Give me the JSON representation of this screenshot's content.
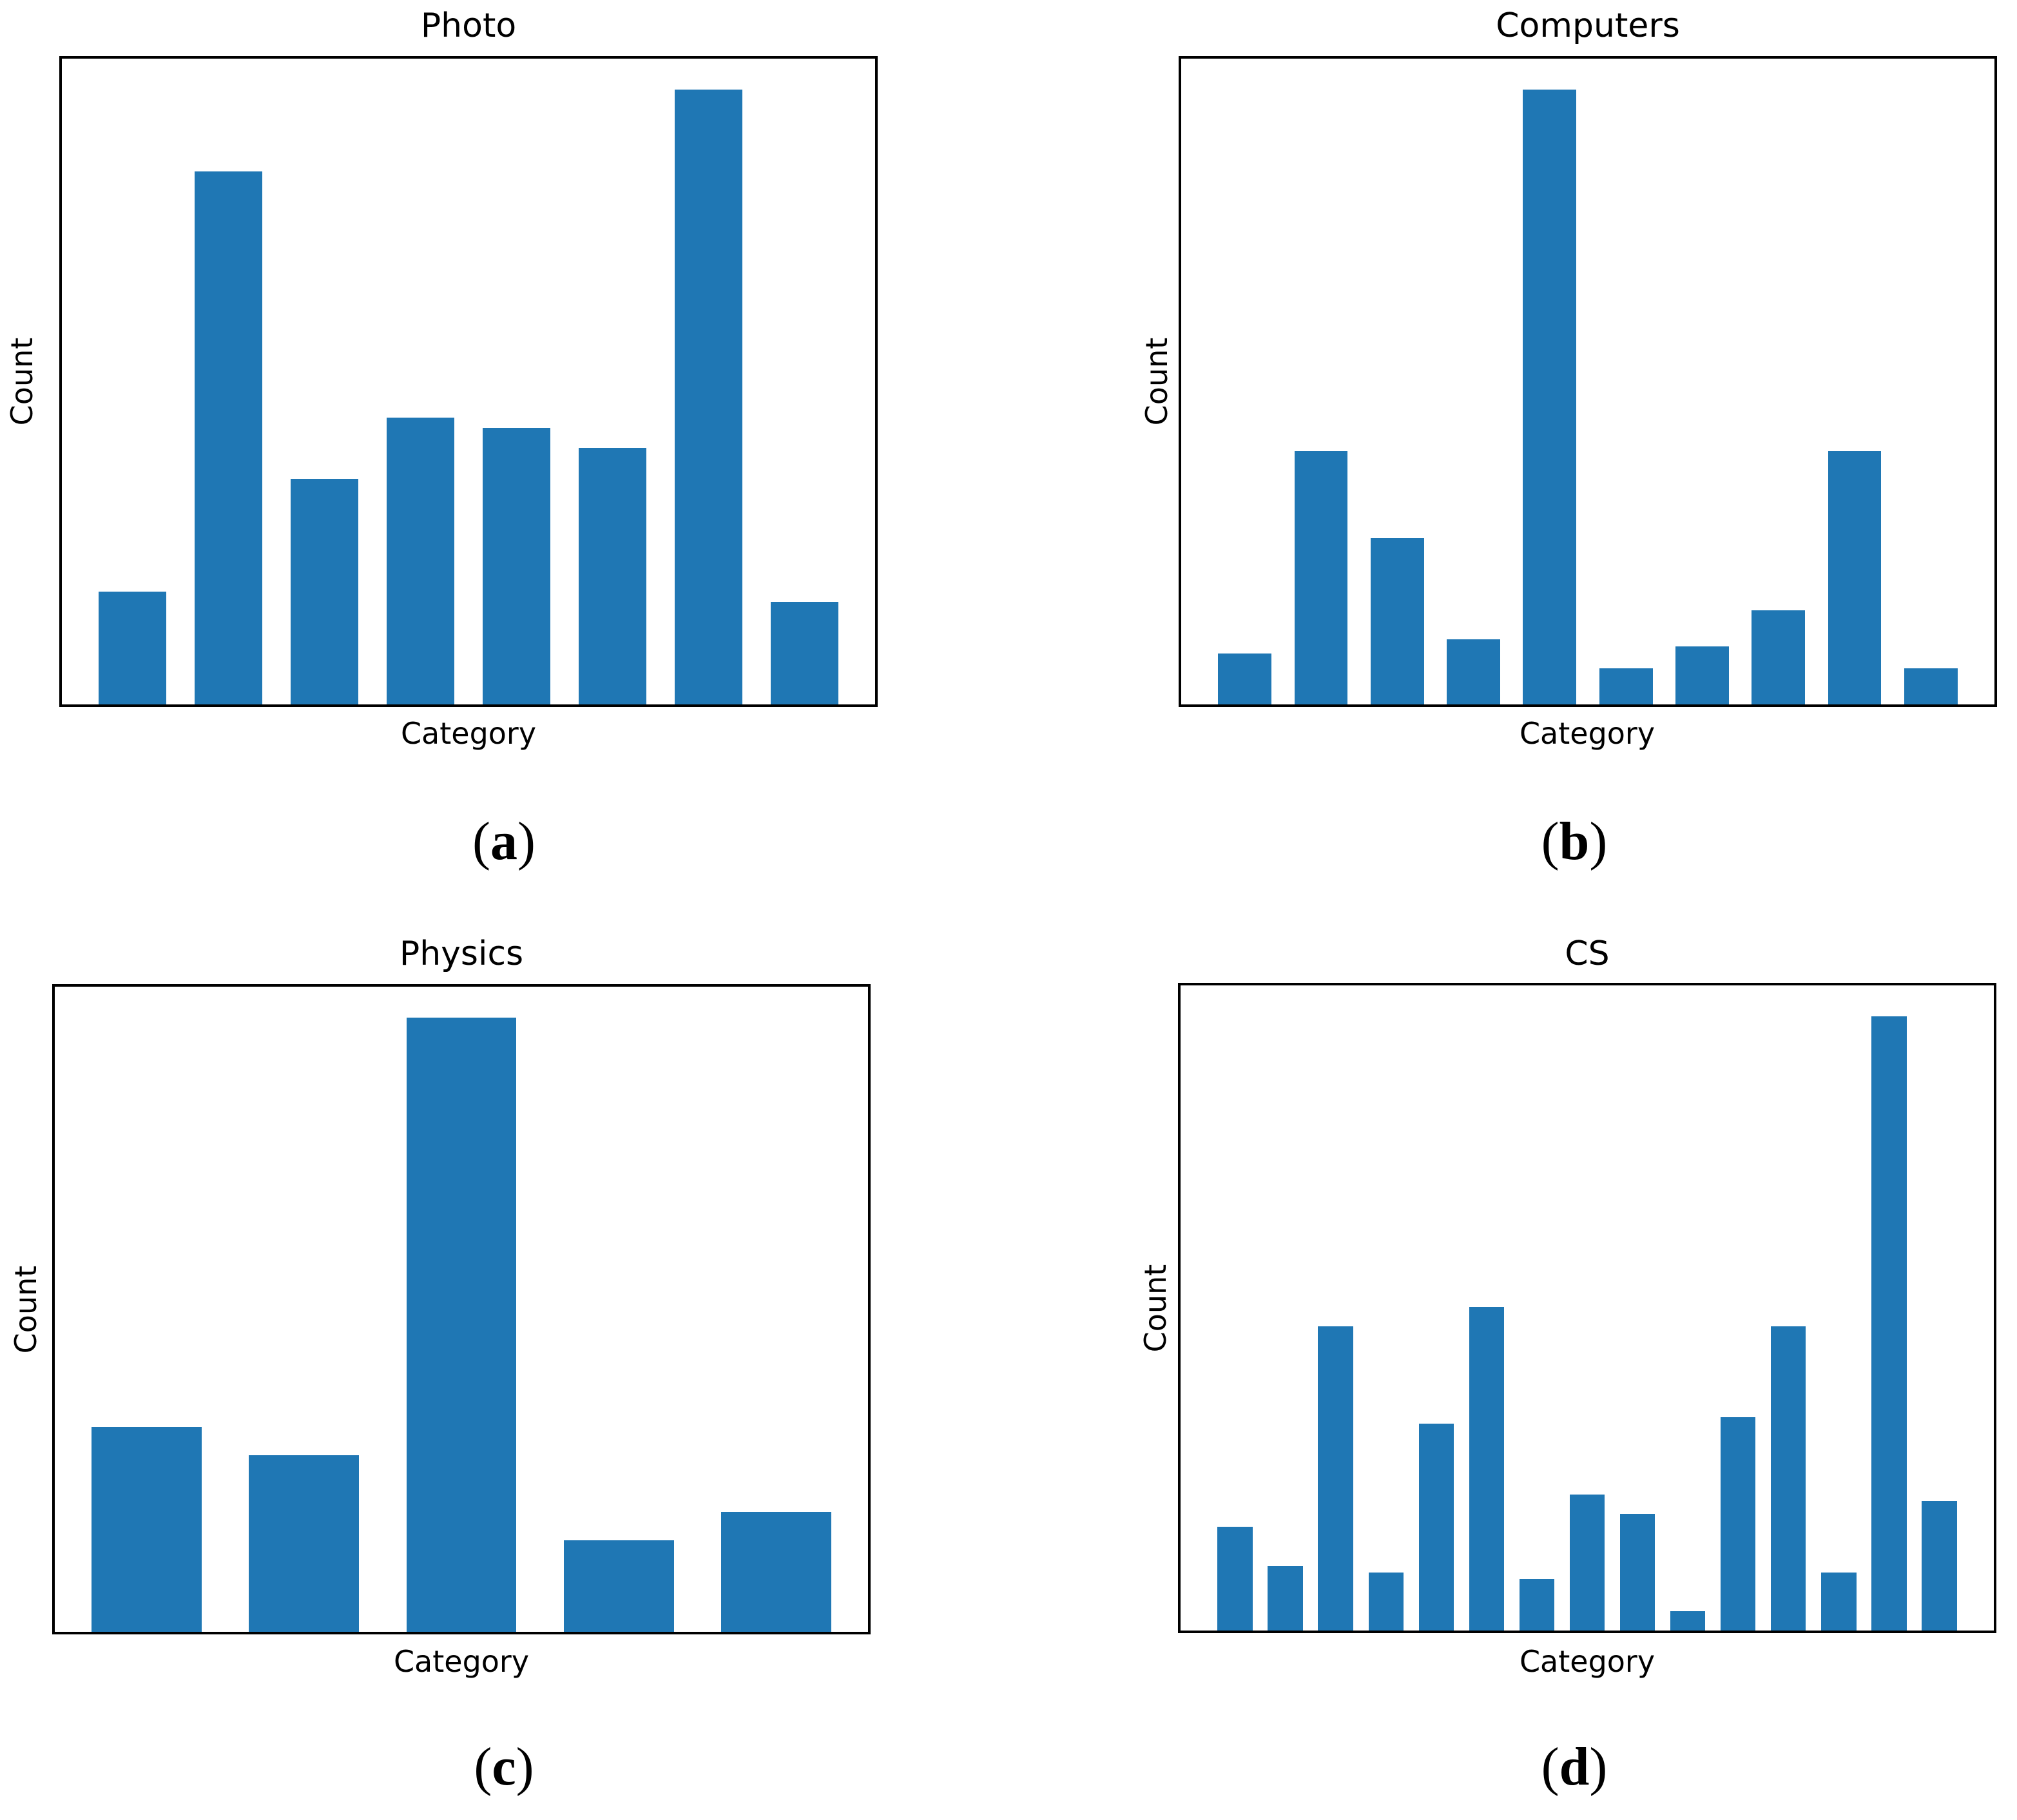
{
  "figure": {
    "bar_color": "#1f77b4",
    "background": "#ffffff",
    "frame_color": "#000000"
  },
  "chart_data": [
    {
      "type": "bar",
      "title": "Photo",
      "xlabel": "Category",
      "ylabel": "Count",
      "values": [
        11,
        52,
        22,
        28,
        27,
        25,
        60,
        10
      ],
      "ylim": [
        0,
        63
      ],
      "grid": false,
      "tick_labels": "none",
      "caption": {
        "open": "(",
        "letter": "a",
        "close": ")"
      }
    },
    {
      "type": "bar",
      "title": "Computers",
      "xlabel": "Category",
      "ylabel": "Count",
      "values": [
        7,
        35,
        23,
        9,
        85,
        5,
        8,
        13,
        35,
        5
      ],
      "ylim": [
        0,
        89.25
      ],
      "grid": false,
      "tick_labels": "none",
      "caption": {
        "open": "(",
        "letter": "b",
        "close": ")"
      }
    },
    {
      "type": "bar",
      "title": "Physics",
      "xlabel": "Category",
      "ylabel": "Count",
      "values": [
        29,
        25,
        87,
        13,
        17
      ],
      "ylim": [
        0,
        91.35
      ],
      "grid": false,
      "tick_labels": "none",
      "caption": {
        "open": "(",
        "letter": "c",
        "close": ")"
      }
    },
    {
      "type": "bar",
      "title": "CS",
      "xlabel": "Category",
      "ylabel": "Count",
      "values": [
        16,
        10,
        47,
        9,
        32,
        50,
        8,
        21,
        18,
        3,
        33,
        47,
        9,
        95,
        20
      ],
      "ylim": [
        0,
        99.75
      ],
      "grid": false,
      "tick_labels": "none",
      "caption": {
        "open": "(",
        "letter": "d",
        "close": ")"
      }
    }
  ]
}
